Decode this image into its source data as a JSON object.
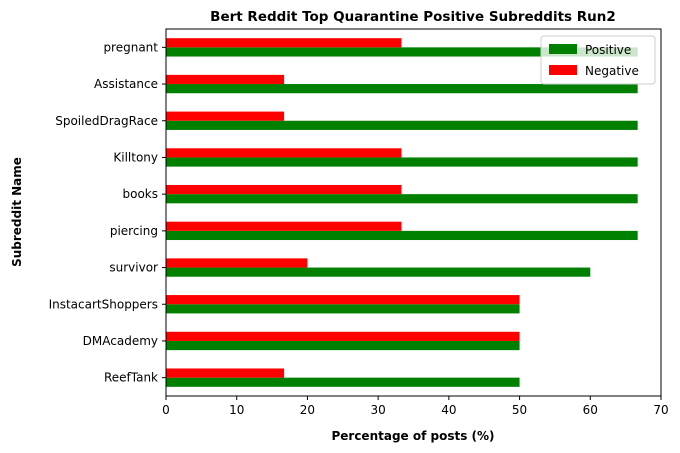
{
  "chart_data": {
    "type": "bar",
    "orientation": "horizontal",
    "title": "Bert Reddit Top Quarantine Positive Subreddits Run2",
    "xlabel": "Percentage of posts (%)",
    "ylabel": "Subreddit Name",
    "xlim": [
      0,
      70
    ],
    "xticks": [
      0,
      10,
      20,
      30,
      40,
      50,
      60,
      70
    ],
    "categories": [
      "ReefTank",
      "DMAcademy",
      "InstacartShoppers",
      "survivor",
      "piercing",
      "books",
      "Killtony",
      "SpoiledDragRace",
      "Assistance",
      "pregnant"
    ],
    "series": [
      {
        "name": "Positive",
        "color": "#008000",
        "values": [
          50,
          50,
          50,
          60,
          66.7,
          66.7,
          66.7,
          66.7,
          66.7,
          66.7
        ]
      },
      {
        "name": "Negative",
        "color": "#ff0000",
        "values": [
          16.7,
          50,
          50,
          20,
          33.3,
          33.3,
          33.3,
          16.7,
          16.7,
          33.3
        ]
      }
    ],
    "legend_position": "top-right",
    "grid": false
  }
}
